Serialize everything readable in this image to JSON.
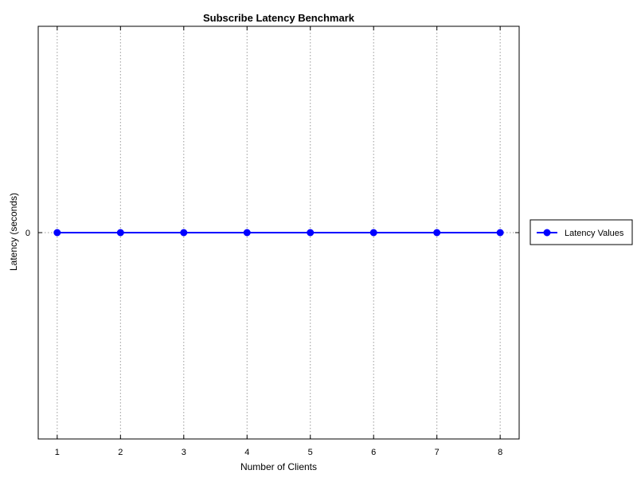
{
  "chart_data": {
    "type": "line",
    "title": "Subscribe Latency Benchmark",
    "xlabel": "Number of Clients",
    "ylabel": "Latency (seconds)",
    "x": [
      1,
      2,
      3,
      4,
      5,
      6,
      7,
      8
    ],
    "xlim": [
      0.7,
      8.3
    ],
    "y_ticks": [
      0
    ],
    "grid": "vertical-dotted",
    "legend_position": "right",
    "series": [
      {
        "name": "Latency Values",
        "values": [
          0,
          0,
          0,
          0,
          0,
          0,
          0,
          0
        ],
        "color": "#0000ff",
        "marker": "circle"
      }
    ]
  }
}
